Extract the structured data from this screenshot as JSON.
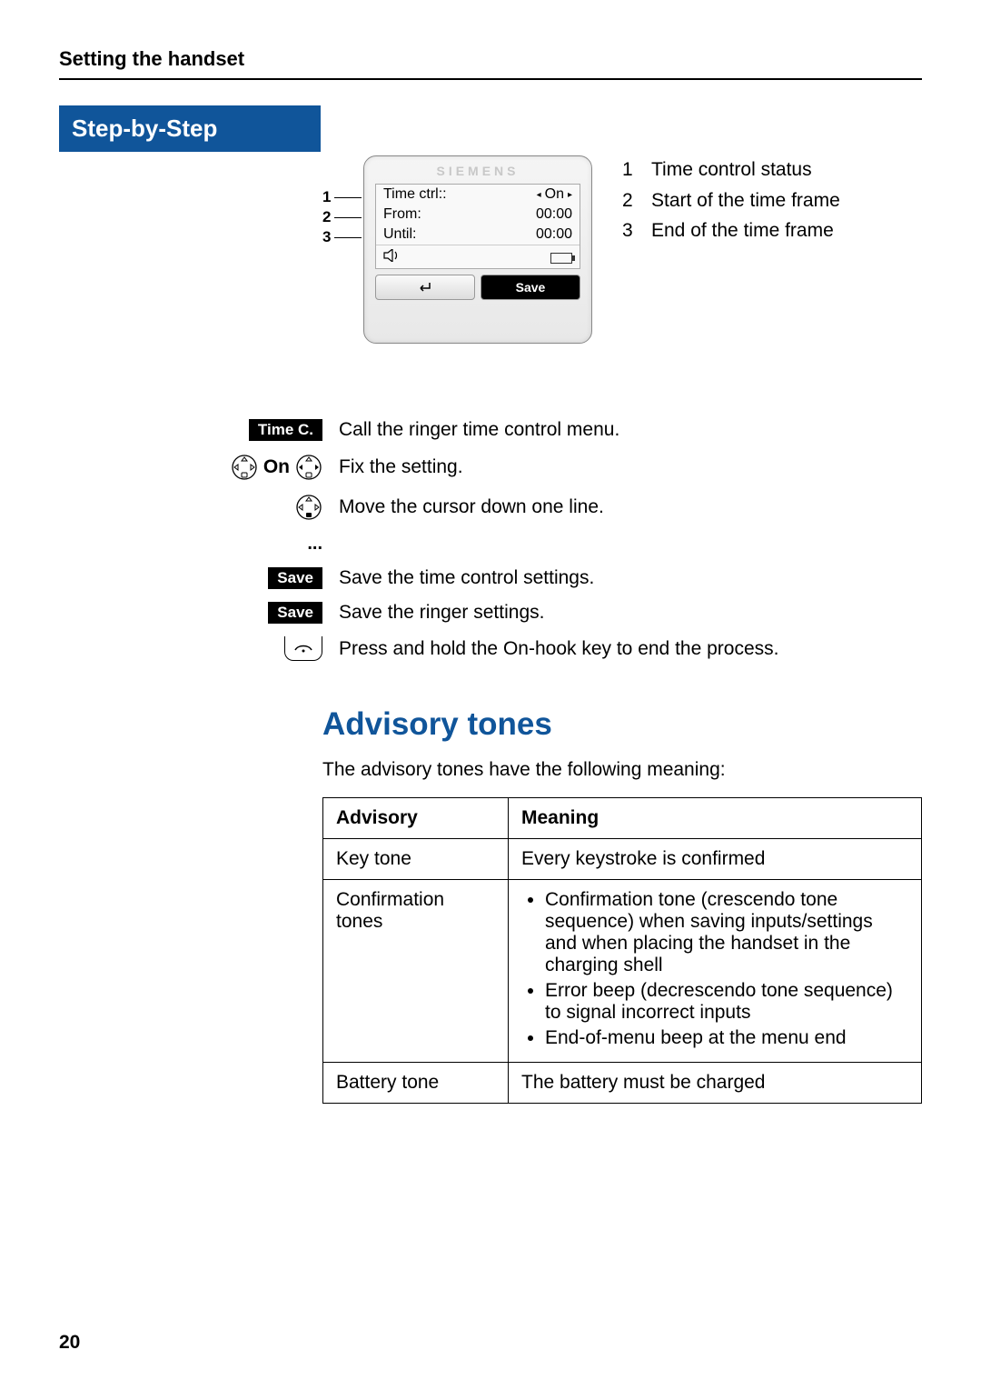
{
  "header": {
    "section": "Setting the handset"
  },
  "sidebar": {
    "banner": "Step-by-Step"
  },
  "diagram": {
    "brand": "SIEMENS",
    "rows": [
      {
        "label": "Time ctrl::",
        "value_prefix": "◂",
        "value": "On",
        "value_suffix": "▸"
      },
      {
        "label": "From:",
        "value": "00:00"
      },
      {
        "label": "Until:",
        "value": "00:00"
      }
    ],
    "soft_left_icon": "↲",
    "soft_right_label": "Save",
    "callout_numbers": [
      "1",
      "2",
      "3"
    ]
  },
  "legend": [
    {
      "n": "1",
      "text": "Time control status"
    },
    {
      "n": "2",
      "text": "Start of the time frame"
    },
    {
      "n": "3",
      "text": "End of the time frame"
    }
  ],
  "steps": [
    {
      "key_type": "badge",
      "key_label": "Time C.",
      "text": "Call the ringer time control menu."
    },
    {
      "key_type": "nav-on",
      "key_label": "On",
      "text": "Fix the setting."
    },
    {
      "key_type": "nav",
      "text": "Move the cursor down one line."
    },
    {
      "key_type": "ellipsis",
      "key_label": "...",
      "text": ""
    },
    {
      "key_type": "badge",
      "key_label": "Save",
      "text": "Save the time control settings."
    },
    {
      "key_type": "badge",
      "key_label": "Save",
      "text": "Save the ringer settings."
    },
    {
      "key_type": "hook",
      "text": "Press and hold the On-hook key to end the process."
    }
  ],
  "advisory": {
    "title": "Advisory tones",
    "intro": "The advisory tones have the following meaning:",
    "headers": {
      "col1": "Advisory",
      "col2": "Meaning"
    },
    "rows": [
      {
        "advisory": "Key tone",
        "meaning_type": "text",
        "meaning": "Every keystroke is confirmed"
      },
      {
        "advisory": "Confirmation tones",
        "meaning_type": "list",
        "items": [
          "Confirmation tone (crescendo tone sequence) when saving inputs/settings and when placing the handset in the charging shell",
          "Error beep (decrescendo tone sequence) to signal incorrect inputs",
          "End-of-menu beep at the menu end"
        ]
      },
      {
        "advisory": "Battery tone",
        "meaning_type": "text",
        "meaning": "The battery must be charged"
      }
    ]
  },
  "page_number": "20",
  "colors": {
    "accent": "#10559a",
    "text": "#000000",
    "bg": "#ffffff"
  }
}
